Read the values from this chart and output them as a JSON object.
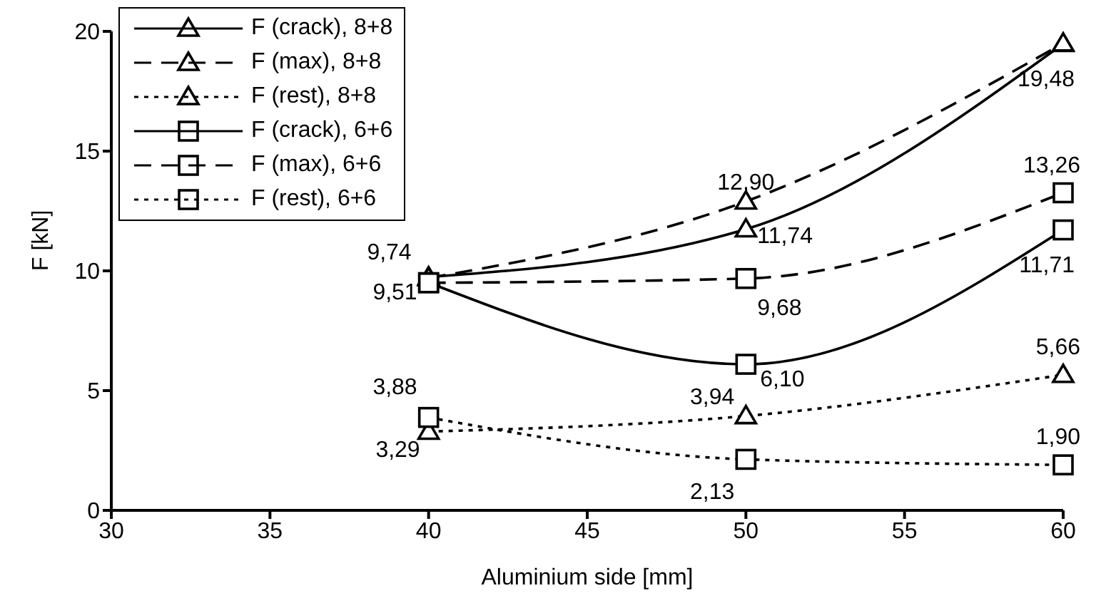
{
  "chart_data": {
    "type": "line",
    "xlabel": "Aluminium side [mm]",
    "ylabel": "F [kN]",
    "x": [
      40,
      50,
      60
    ],
    "series": [
      {
        "name": "F (crack), 8+8",
        "color": "#000000",
        "marker": "triangle",
        "line_style": "solid",
        "values": [
          9.74,
          11.74,
          19.48
        ],
        "value_labels": [
          "9,74",
          "11,74",
          "19,48"
        ]
      },
      {
        "name": "F (max), 8+8",
        "color": "#000000",
        "marker": "triangle",
        "line_style": "dashed",
        "values": [
          9.7,
          12.9,
          19.5
        ],
        "value_labels": [
          null,
          "12,90",
          null
        ]
      },
      {
        "name": "F (rest), 8+8",
        "color": "#000000",
        "marker": "triangle",
        "line_style": "dotted",
        "values": [
          3.29,
          3.94,
          5.66
        ],
        "value_labels": [
          "3,29",
          "3,94",
          "5,66"
        ]
      },
      {
        "name": "F (crack), 6+6",
        "color": "#000000",
        "marker": "square",
        "line_style": "solid",
        "values": [
          9.51,
          6.1,
          11.71
        ],
        "value_labels": [
          "9,51",
          "6,10",
          "11,71"
        ]
      },
      {
        "name": "F (max), 6+6",
        "color": "#000000",
        "marker": "square",
        "line_style": "dashed",
        "values": [
          9.5,
          9.68,
          13.26
        ],
        "value_labels": [
          null,
          "9,68",
          "13,26"
        ]
      },
      {
        "name": "F (rest), 6+6",
        "color": "#000000",
        "marker": "square",
        "line_style": "dotted",
        "values": [
          3.88,
          2.13,
          1.9
        ],
        "value_labels": [
          "3,88",
          "2,13",
          "1,90"
        ]
      }
    ],
    "xlim": [
      30,
      60
    ],
    "xticks": [
      30,
      35,
      40,
      45,
      50,
      55,
      60
    ],
    "ylim": [
      0,
      20
    ],
    "yticks": [
      0,
      5,
      10,
      15,
      20
    ],
    "grid": false,
    "legend": "top left"
  }
}
